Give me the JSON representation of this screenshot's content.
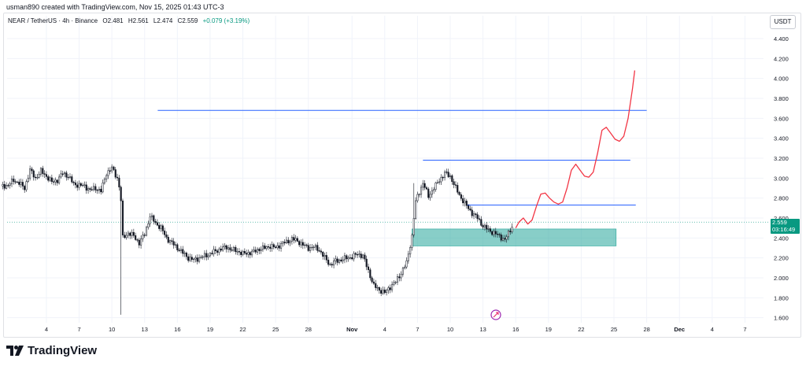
{
  "caption": "usman890 created with TradingView.com, Nov 15, 2025 01:43 UTC-3",
  "symbol": {
    "name": "NEAR / TetherUS · 4h · Binance",
    "open": "O2.481",
    "high": "H2.561",
    "low": "L2.474",
    "close": "C2.559",
    "change": "+0.079 (+3.19%)"
  },
  "currency_button": "USDT",
  "current_price": {
    "value": "2.559",
    "countdown": "03:16:49"
  },
  "brand": "TradingView",
  "colors": {
    "up": "#089981",
    "hline": "#2962ff",
    "projection": "#f23645",
    "zone": "#26a69a"
  },
  "chart_data": {
    "type": "candlestick",
    "title": "",
    "xlabel": "",
    "ylabel": "",
    "ylim": [
      1.55,
      4.55
    ],
    "y_ticks": [
      "4.400",
      "4.200",
      "4.000",
      "3.800",
      "3.600",
      "3.400",
      "3.200",
      "3.000",
      "2.800",
      "2.600",
      "2.400",
      "2.200",
      "2.000",
      "1.800",
      "1.600"
    ],
    "x_ticks": [
      {
        "label": "4",
        "day": 4
      },
      {
        "label": "7",
        "day": 7
      },
      {
        "label": "10",
        "day": 10
      },
      {
        "label": "13",
        "day": 13
      },
      {
        "label": "16",
        "day": 16
      },
      {
        "label": "19",
        "day": 19
      },
      {
        "label": "22",
        "day": 22
      },
      {
        "label": "25",
        "day": 25
      },
      {
        "label": "28",
        "day": 28
      },
      {
        "label": "Nov",
        "day": 32
      },
      {
        "label": "4",
        "day": 35
      },
      {
        "label": "7",
        "day": 38
      },
      {
        "label": "10",
        "day": 41
      },
      {
        "label": "13",
        "day": 44
      },
      {
        "label": "16",
        "day": 47
      },
      {
        "label": "19",
        "day": 50
      },
      {
        "label": "22",
        "day": 53
      },
      {
        "label": "25",
        "day": 56
      },
      {
        "label": "28",
        "day": 59
      },
      {
        "label": "Dec",
        "day": 62
      },
      {
        "label": "4",
        "day": 65
      },
      {
        "label": "7",
        "day": 68
      }
    ],
    "price_path": [
      [
        0.0,
        2.92
      ],
      [
        0.5,
        2.93
      ],
      [
        1.0,
        2.98
      ],
      [
        1.5,
        2.95
      ],
      [
        2.0,
        2.9
      ],
      [
        2.5,
        3.08
      ],
      [
        3.0,
        3.0
      ],
      [
        3.5,
        3.07
      ],
      [
        4.0,
        3.02
      ],
      [
        4.5,
        2.96
      ],
      [
        5.0,
        2.98
      ],
      [
        5.5,
        3.05
      ],
      [
        6.0,
        3.02
      ],
      [
        6.5,
        2.94
      ],
      [
        7.0,
        2.93
      ],
      [
        7.5,
        2.92
      ],
      [
        8.0,
        2.88
      ],
      [
        8.5,
        2.9
      ],
      [
        9.0,
        2.87
      ],
      [
        9.5,
        3.05
      ],
      [
        10.0,
        3.1
      ],
      [
        10.5,
        3.0
      ],
      [
        10.8,
        2.85
      ],
      [
        11.0,
        2.4
      ],
      [
        11.5,
        2.45
      ],
      [
        12.0,
        2.42
      ],
      [
        12.5,
        2.35
      ],
      [
        13.0,
        2.44
      ],
      [
        13.5,
        2.62
      ],
      [
        14.0,
        2.55
      ],
      [
        14.5,
        2.5
      ],
      [
        15.0,
        2.4
      ],
      [
        15.5,
        2.35
      ],
      [
        16.0,
        2.3
      ],
      [
        16.5,
        2.25
      ],
      [
        17.0,
        2.2
      ],
      [
        17.5,
        2.18
      ],
      [
        18.0,
        2.2
      ],
      [
        18.5,
        2.22
      ],
      [
        19.0,
        2.24
      ],
      [
        19.5,
        2.27
      ],
      [
        20.0,
        2.29
      ],
      [
        20.5,
        2.31
      ],
      [
        21.0,
        2.28
      ],
      [
        21.5,
        2.27
      ],
      [
        22.0,
        2.24
      ],
      [
        22.5,
        2.25
      ],
      [
        23.0,
        2.26
      ],
      [
        23.5,
        2.29
      ],
      [
        24.0,
        2.3
      ],
      [
        24.5,
        2.32
      ],
      [
        25.0,
        2.3
      ],
      [
        25.5,
        2.34
      ],
      [
        26.0,
        2.36
      ],
      [
        26.5,
        2.39
      ],
      [
        27.0,
        2.37
      ],
      [
        27.5,
        2.33
      ],
      [
        28.0,
        2.3
      ],
      [
        28.5,
        2.31
      ],
      [
        29.0,
        2.28
      ],
      [
        29.5,
        2.2
      ],
      [
        30.0,
        2.13
      ],
      [
        30.5,
        2.17
      ],
      [
        31.0,
        2.18
      ],
      [
        31.5,
        2.2
      ],
      [
        32.0,
        2.21
      ],
      [
        32.5,
        2.24
      ],
      [
        33.0,
        2.22
      ],
      [
        33.5,
        2.07
      ],
      [
        34.0,
        1.92
      ],
      [
        34.5,
        1.88
      ],
      [
        35.0,
        1.85
      ],
      [
        35.5,
        1.91
      ],
      [
        36.0,
        1.96
      ],
      [
        36.5,
        2.05
      ],
      [
        37.0,
        2.15
      ],
      [
        37.5,
        2.42
      ],
      [
        37.8,
        2.75
      ],
      [
        38.0,
        2.82
      ],
      [
        38.5,
        2.95
      ],
      [
        39.0,
        2.82
      ],
      [
        39.5,
        2.9
      ],
      [
        40.0,
        2.98
      ],
      [
        40.5,
        3.05
      ],
      [
        41.0,
        3.02
      ],
      [
        41.5,
        2.9
      ],
      [
        42.0,
        2.8
      ],
      [
        42.5,
        2.72
      ],
      [
        43.0,
        2.65
      ],
      [
        43.5,
        2.6
      ],
      [
        44.0,
        2.52
      ],
      [
        44.5,
        2.48
      ],
      [
        45.0,
        2.45
      ],
      [
        45.5,
        2.42
      ],
      [
        46.0,
        2.38
      ],
      [
        46.5,
        2.48
      ],
      [
        46.8,
        2.559
      ]
    ],
    "support_zone": {
      "from_day": 37.5,
      "to_day": 56.2,
      "low": 2.32,
      "high": 2.49
    },
    "horizontal_levels": [
      {
        "price": 3.68,
        "from_day": 14.2,
        "to_day": 59.0
      },
      {
        "price": 3.18,
        "from_day": 38.5,
        "to_day": 57.5
      },
      {
        "price": 2.73,
        "from_day": 42.5,
        "to_day": 58.0
      }
    ],
    "projection_path": [
      [
        47.0,
        2.5
      ],
      [
        47.3,
        2.56
      ],
      [
        47.7,
        2.6
      ],
      [
        48.1,
        2.54
      ],
      [
        48.5,
        2.58
      ],
      [
        48.9,
        2.72
      ],
      [
        49.3,
        2.84
      ],
      [
        49.7,
        2.85
      ],
      [
        50.1,
        2.8
      ],
      [
        50.5,
        2.76
      ],
      [
        50.9,
        2.74
      ],
      [
        51.3,
        2.76
      ],
      [
        51.7,
        2.9
      ],
      [
        52.1,
        3.08
      ],
      [
        52.5,
        3.14
      ],
      [
        52.9,
        3.08
      ],
      [
        53.3,
        3.02
      ],
      [
        53.7,
        3.01
      ],
      [
        54.1,
        3.06
      ],
      [
        54.5,
        3.25
      ],
      [
        54.9,
        3.48
      ],
      [
        55.3,
        3.51
      ],
      [
        55.7,
        3.45
      ],
      [
        56.1,
        3.39
      ],
      [
        56.5,
        3.37
      ],
      [
        56.9,
        3.42
      ],
      [
        57.3,
        3.6
      ],
      [
        57.7,
        3.9
      ],
      [
        57.9,
        4.08
      ]
    ]
  }
}
